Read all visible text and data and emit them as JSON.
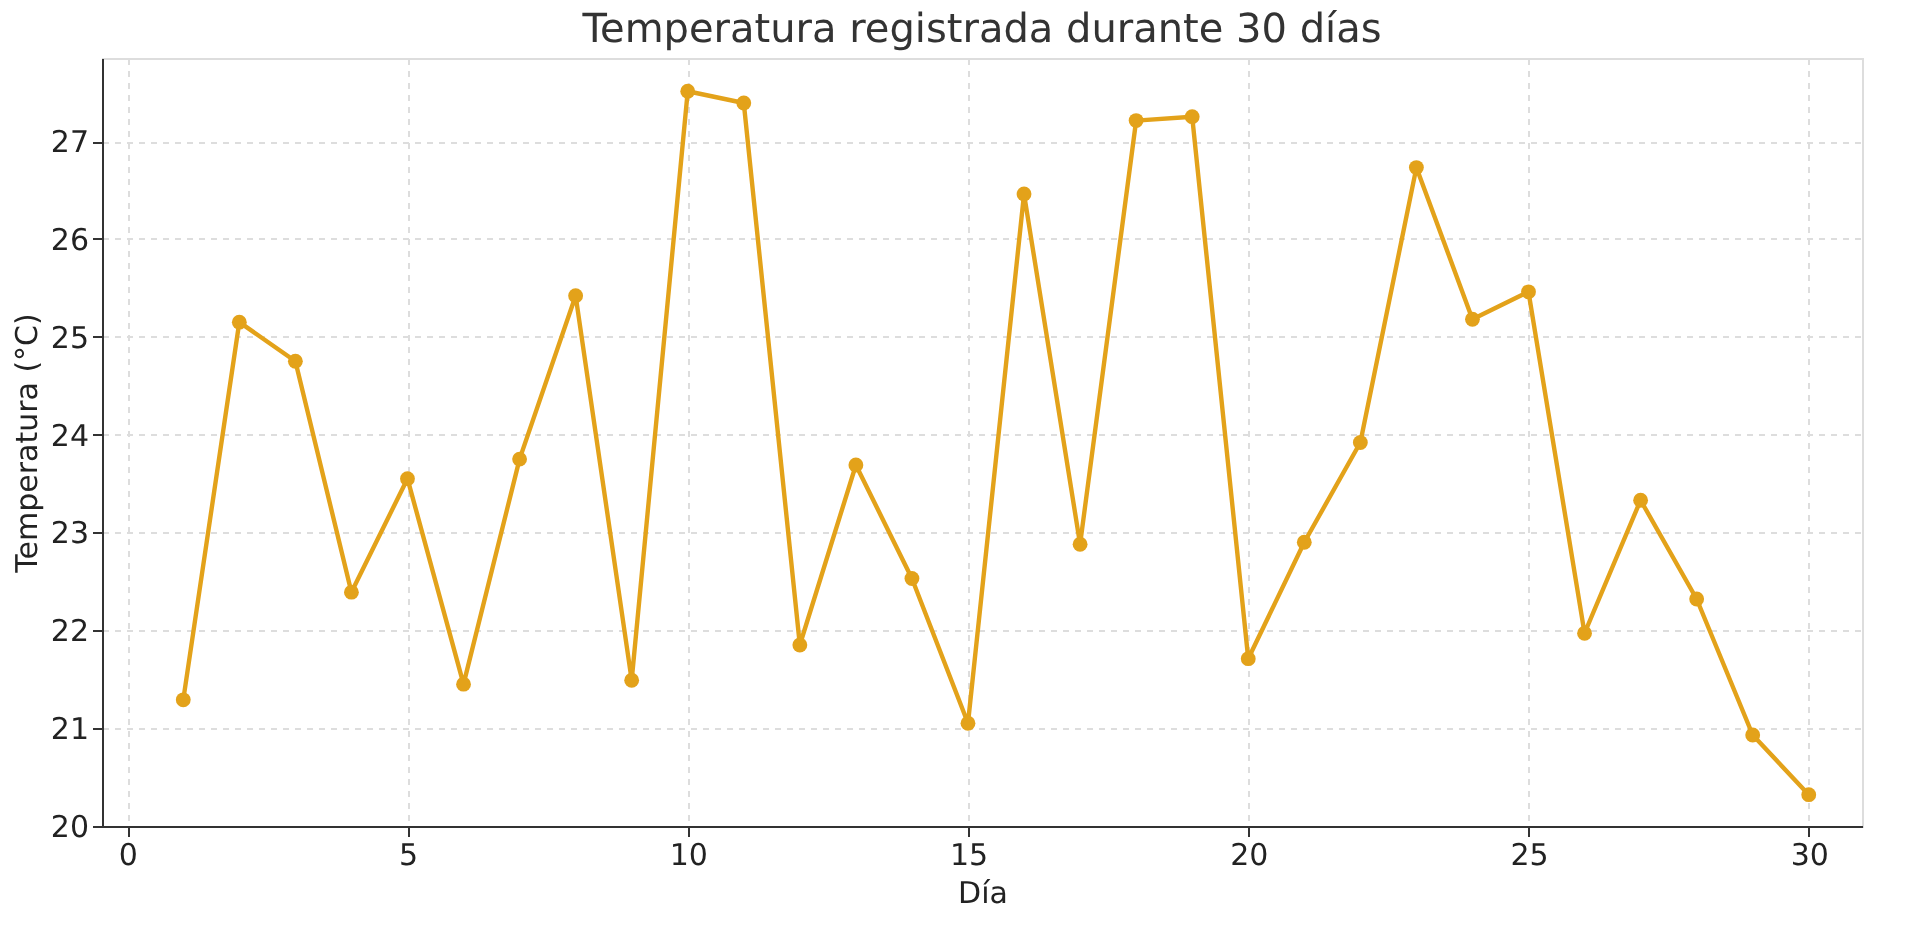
{
  "chart_data": {
    "type": "line",
    "title": "Temperatura registrada durante 30 días",
    "xlabel": "Día",
    "ylabel": "Temperatura (°C)",
    "x": [
      1,
      2,
      3,
      4,
      5,
      6,
      7,
      8,
      9,
      10,
      11,
      12,
      13,
      14,
      15,
      16,
      17,
      18,
      19,
      20,
      21,
      22,
      23,
      24,
      25,
      26,
      27,
      28,
      29,
      30
    ],
    "series": [
      {
        "color": "#e3a21a",
        "values": [
          21.29,
          25.15,
          24.75,
          22.39,
          23.55,
          21.45,
          23.75,
          25.42,
          21.49,
          27.51,
          27.39,
          21.85,
          23.69,
          22.53,
          21.05,
          26.46,
          22.88,
          27.21,
          27.25,
          21.71,
          22.9,
          23.92,
          26.73,
          25.18,
          25.46,
          21.97,
          23.33,
          22.32,
          20.93,
          20.32
        ]
      }
    ],
    "xlim": [
      -0.45,
      30.95
    ],
    "ylim": [
      20,
      27.85
    ],
    "xticks": [
      0,
      5,
      10,
      15,
      20,
      25,
      30
    ],
    "yticks": [
      20,
      21,
      22,
      23,
      24,
      25,
      26,
      27
    ],
    "grid": true,
    "marker": "circle",
    "line_style": "solid"
  }
}
